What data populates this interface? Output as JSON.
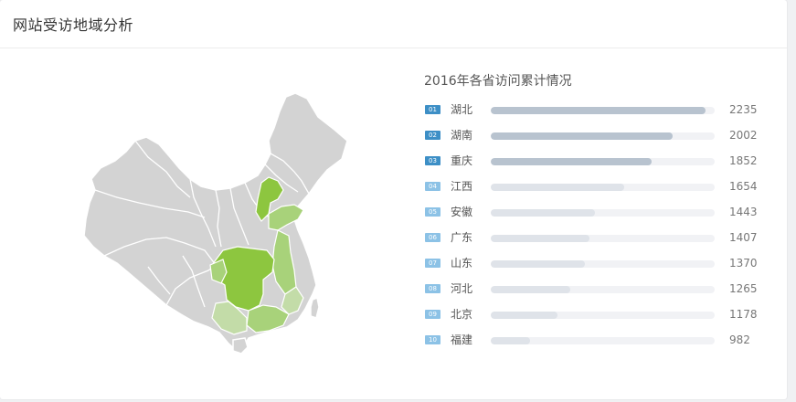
{
  "panel": {
    "title": "网站受访地域分析"
  },
  "chart_data": {
    "type": "bar",
    "title": "2016年各省访问累计情况",
    "ranks": [
      "01",
      "02",
      "03",
      "04",
      "05",
      "06",
      "07",
      "08",
      "09",
      "10"
    ],
    "categories": [
      "湖北",
      "湖南",
      "重庆",
      "江西",
      "安徽",
      "广东",
      "山东",
      "河北",
      "北京",
      "福建"
    ],
    "values": [
      2235,
      2002,
      1852,
      1654,
      1443,
      1407,
      1370,
      1265,
      1178,
      982
    ],
    "xlim": [
      700,
      2300
    ],
    "colors": {
      "top_badge": "#3d8fc6",
      "other_badge": "#8cc2e6",
      "top_fill": "#b8c3cf",
      "other_fill": "#dfe3e9",
      "track": "#f1f2f5"
    }
  },
  "map": {
    "colors": {
      "land": "#d3d3d3",
      "border": "#ffffff",
      "dark_green": "#8dc63f",
      "mid_green": "#a8d27a",
      "light_green": "#c3dca8"
    }
  }
}
